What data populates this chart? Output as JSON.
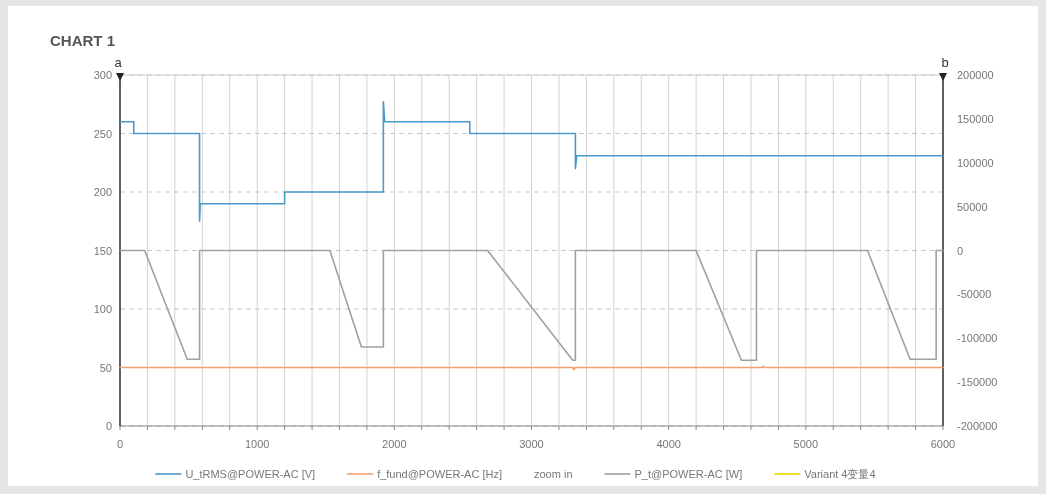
{
  "chart_data": {
    "type": "line",
    "title": "CHART 1",
    "ylabel": "a",
    "y2label": "b",
    "xlim": [
      0,
      6000
    ],
    "xticks": [
      0,
      {
        "value": 200,
        "label": null
      },
      {
        "value": 400,
        "label": null
      },
      {
        "value": 600,
        "label": null
      },
      {
        "value": 800,
        "label": null
      },
      1000,
      {
        "value": 1200,
        "label": null
      },
      {
        "value": 1400,
        "label": null
      },
      {
        "value": 1600,
        "label": null
      },
      {
        "value": 1800,
        "label": null
      },
      2000,
      {
        "value": 2200,
        "label": null
      },
      {
        "value": 2400,
        "label": null
      },
      {
        "value": 2600,
        "label": null
      },
      {
        "value": 2800,
        "label": null
      },
      3000,
      {
        "value": 3200,
        "label": null
      },
      {
        "value": 3400,
        "label": null
      },
      {
        "value": 3600,
        "label": null
      },
      {
        "value": 3800,
        "label": null
      },
      4000,
      {
        "value": 4200,
        "label": null
      },
      {
        "value": 4400,
        "label": null
      },
      {
        "value": 4600,
        "label": null
      },
      {
        "value": 4800,
        "label": null
      },
      5000,
      {
        "value": 5200,
        "label": null
      },
      {
        "value": 5400,
        "label": null
      },
      {
        "value": 5600,
        "label": null
      },
      {
        "value": 5800,
        "label": null
      },
      6000
    ],
    "ylim": [
      0,
      300
    ],
    "yticks": [
      0,
      50,
      100,
      150,
      200,
      250,
      300
    ],
    "y2lim": [
      -200000,
      200000
    ],
    "y2ticks": [
      -200000,
      -150000,
      -100000,
      -50000,
      0,
      50000,
      100000,
      150000,
      200000
    ],
    "grid": true,
    "legend": "bottom",
    "series": [
      {
        "name": "U_tRMS@POWER-AC [V]",
        "color": "#4a9acb",
        "x": [
          0,
          100,
          100,
          580,
          580,
          585,
          1200,
          1200,
          1920,
          1920,
          1930,
          2550,
          2550,
          3320,
          3320,
          3330,
          6000
        ],
        "values": [
          260,
          260,
          250,
          250,
          175,
          190,
          190,
          200,
          200,
          277,
          260,
          260,
          250,
          250,
          220,
          231,
          231
        ]
      },
      {
        "name": "f_fund@POWER-AC [Hz]",
        "color": "#f4a070",
        "x": [
          0,
          3300,
          3310,
          3320,
          4680,
          4690,
          4700,
          6000
        ],
        "values": [
          50,
          50,
          48,
          50,
          50,
          51,
          50,
          50
        ]
      },
      {
        "name": "zoom in",
        "color": null
      },
      {
        "name": "P_t@POWER-AC [W]",
        "color": "#a0a0a0",
        "axis": "y2",
        "x": [
          0,
          180,
          490,
          580,
          580,
          1530,
          1760,
          1920,
          1920,
          2680,
          3300,
          3320,
          3320,
          4200,
          4530,
          4640,
          4640,
          5450,
          5760,
          5950,
          5950,
          6000
        ],
        "values": [
          0,
          0,
          -124000,
          -124000,
          0,
          0,
          -110000,
          -110000,
          0,
          0,
          -125000,
          -125000,
          0,
          0,
          -125000,
          -125000,
          0,
          0,
          -124000,
          -124000,
          0,
          0
        ]
      },
      {
        "name": "Variant 4变量4",
        "color": "#f2d600"
      }
    ]
  }
}
